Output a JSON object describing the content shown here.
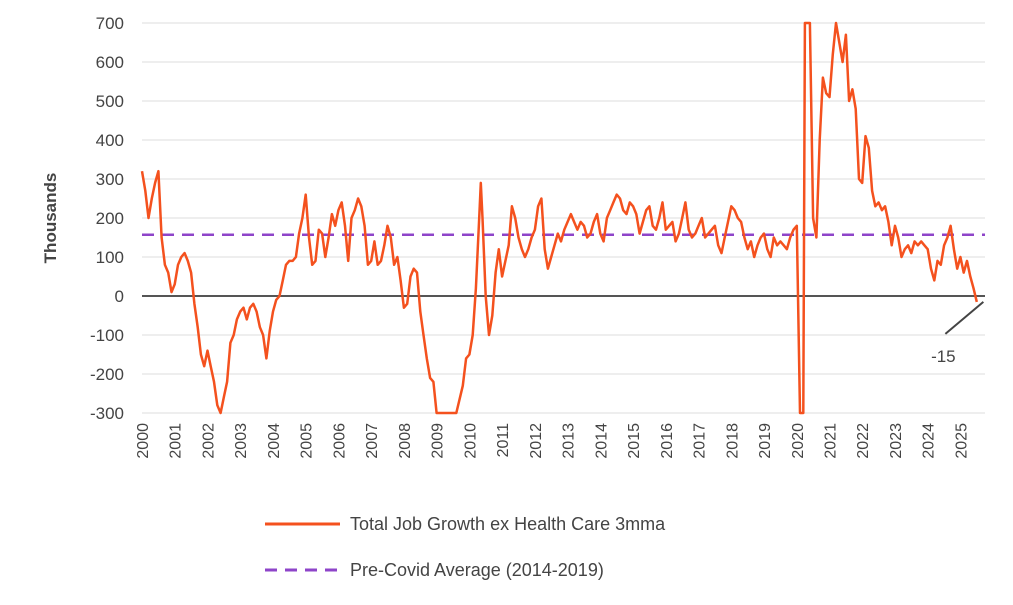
{
  "chart_data": {
    "type": "line",
    "title": "",
    "xlabel": "",
    "ylabel": "Thousands",
    "ylim": [
      -300,
      700
    ],
    "xlim": [
      2000,
      2025.75
    ],
    "yticks": [
      -300,
      -200,
      -100,
      0,
      100,
      200,
      300,
      400,
      500,
      600,
      700
    ],
    "xticks": [
      "2000",
      "2001",
      "2002",
      "2003",
      "2004",
      "2005",
      "2006",
      "2007",
      "2008",
      "2009",
      "2010",
      "2011",
      "2012",
      "2013",
      "2014",
      "2015",
      "2016",
      "2017",
      "2018",
      "2019",
      "2020",
      "2021",
      "2022",
      "2023",
      "2024",
      "2025"
    ],
    "legend": [
      "Total Job Growth ex Health Care 3mma",
      "Pre-Covid Average (2014-2019)"
    ],
    "legend_position": "bottom",
    "annotation": {
      "text": "-15",
      "x": 2025.7,
      "y": -15
    },
    "series": [
      {
        "name": "Total Job Growth ex Health Care 3mma",
        "color": "#f4511e",
        "points": [
          [
            2000.0,
            320
          ],
          [
            2000.1,
            270
          ],
          [
            2000.2,
            200
          ],
          [
            2000.3,
            250
          ],
          [
            2000.4,
            290
          ],
          [
            2000.5,
            320
          ],
          [
            2000.6,
            150
          ],
          [
            2000.7,
            80
          ],
          [
            2000.8,
            60
          ],
          [
            2000.9,
            10
          ],
          [
            2001.0,
            30
          ],
          [
            2001.1,
            80
          ],
          [
            2001.2,
            100
          ],
          [
            2001.3,
            110
          ],
          [
            2001.4,
            90
          ],
          [
            2001.5,
            60
          ],
          [
            2001.6,
            -20
          ],
          [
            2001.7,
            -80
          ],
          [
            2001.8,
            -150
          ],
          [
            2001.9,
            -180
          ],
          [
            2002.0,
            -140
          ],
          [
            2002.1,
            -180
          ],
          [
            2002.2,
            -220
          ],
          [
            2002.3,
            -280
          ],
          [
            2002.4,
            -300
          ],
          [
            2002.5,
            -260
          ],
          [
            2002.6,
            -220
          ],
          [
            2002.7,
            -120
          ],
          [
            2002.8,
            -100
          ],
          [
            2002.9,
            -60
          ],
          [
            2003.0,
            -40
          ],
          [
            2003.1,
            -30
          ],
          [
            2003.2,
            -60
          ],
          [
            2003.3,
            -30
          ],
          [
            2003.4,
            -20
          ],
          [
            2003.5,
            -40
          ],
          [
            2003.6,
            -80
          ],
          [
            2003.7,
            -100
          ],
          [
            2003.8,
            -160
          ],
          [
            2003.9,
            -90
          ],
          [
            2004.0,
            -40
          ],
          [
            2004.1,
            -10
          ],
          [
            2004.2,
            0
          ],
          [
            2004.3,
            40
          ],
          [
            2004.4,
            80
          ],
          [
            2004.5,
            90
          ],
          [
            2004.6,
            90
          ],
          [
            2004.7,
            100
          ],
          [
            2004.8,
            160
          ],
          [
            2004.9,
            200
          ],
          [
            2005.0,
            260
          ],
          [
            2005.1,
            150
          ],
          [
            2005.2,
            80
          ],
          [
            2005.3,
            90
          ],
          [
            2005.4,
            170
          ],
          [
            2005.5,
            160
          ],
          [
            2005.6,
            100
          ],
          [
            2005.7,
            150
          ],
          [
            2005.8,
            210
          ],
          [
            2005.9,
            180
          ],
          [
            2006.0,
            220
          ],
          [
            2006.1,
            240
          ],
          [
            2006.2,
            180
          ],
          [
            2006.3,
            90
          ],
          [
            2006.4,
            200
          ],
          [
            2006.5,
            220
          ],
          [
            2006.6,
            250
          ],
          [
            2006.7,
            230
          ],
          [
            2006.8,
            180
          ],
          [
            2006.9,
            80
          ],
          [
            2007.0,
            90
          ],
          [
            2007.1,
            140
          ],
          [
            2007.2,
            80
          ],
          [
            2007.3,
            90
          ],
          [
            2007.4,
            130
          ],
          [
            2007.5,
            180
          ],
          [
            2007.6,
            150
          ],
          [
            2007.7,
            80
          ],
          [
            2007.8,
            100
          ],
          [
            2007.9,
            40
          ],
          [
            2008.0,
            -30
          ],
          [
            2008.1,
            -20
          ],
          [
            2008.2,
            50
          ],
          [
            2008.3,
            70
          ],
          [
            2008.4,
            60
          ],
          [
            2008.5,
            -40
          ],
          [
            2008.6,
            -100
          ],
          [
            2008.7,
            -160
          ],
          [
            2008.8,
            -210
          ],
          [
            2008.9,
            -220
          ],
          [
            2009.0,
            -300
          ],
          [
            2009.3,
            -300
          ],
          [
            2009.6,
            -300
          ],
          [
            2009.8,
            -230
          ],
          [
            2009.9,
            -160
          ],
          [
            2010.0,
            -150
          ],
          [
            2010.1,
            -100
          ],
          [
            2010.2,
            20
          ],
          [
            2010.3,
            200
          ],
          [
            2010.35,
            290
          ],
          [
            2010.4,
            200
          ],
          [
            2010.5,
            0
          ],
          [
            2010.6,
            -100
          ],
          [
            2010.7,
            -50
          ],
          [
            2010.8,
            60
          ],
          [
            2010.9,
            120
          ],
          [
            2011.0,
            50
          ],
          [
            2011.1,
            90
          ],
          [
            2011.2,
            130
          ],
          [
            2011.3,
            230
          ],
          [
            2011.4,
            200
          ],
          [
            2011.5,
            150
          ],
          [
            2011.6,
            120
          ],
          [
            2011.7,
            100
          ],
          [
            2011.8,
            120
          ],
          [
            2011.9,
            150
          ],
          [
            2012.0,
            170
          ],
          [
            2012.1,
            230
          ],
          [
            2012.2,
            250
          ],
          [
            2012.3,
            120
          ],
          [
            2012.4,
            70
          ],
          [
            2012.5,
            100
          ],
          [
            2012.6,
            130
          ],
          [
            2012.7,
            160
          ],
          [
            2012.8,
            140
          ],
          [
            2012.9,
            170
          ],
          [
            2013.0,
            190
          ],
          [
            2013.1,
            210
          ],
          [
            2013.2,
            190
          ],
          [
            2013.3,
            170
          ],
          [
            2013.4,
            190
          ],
          [
            2013.5,
            180
          ],
          [
            2013.6,
            150
          ],
          [
            2013.7,
            160
          ],
          [
            2013.8,
            190
          ],
          [
            2013.9,
            210
          ],
          [
            2014.0,
            160
          ],
          [
            2014.1,
            140
          ],
          [
            2014.2,
            200
          ],
          [
            2014.3,
            220
          ],
          [
            2014.4,
            240
          ],
          [
            2014.5,
            260
          ],
          [
            2014.6,
            250
          ],
          [
            2014.7,
            220
          ],
          [
            2014.8,
            210
          ],
          [
            2014.9,
            240
          ],
          [
            2015.0,
            230
          ],
          [
            2015.1,
            210
          ],
          [
            2015.2,
            160
          ],
          [
            2015.3,
            190
          ],
          [
            2015.4,
            220
          ],
          [
            2015.5,
            230
          ],
          [
            2015.6,
            180
          ],
          [
            2015.7,
            170
          ],
          [
            2015.8,
            200
          ],
          [
            2015.9,
            240
          ],
          [
            2016.0,
            170
          ],
          [
            2016.1,
            180
          ],
          [
            2016.2,
            190
          ],
          [
            2016.3,
            140
          ],
          [
            2016.4,
            160
          ],
          [
            2016.5,
            200
          ],
          [
            2016.6,
            240
          ],
          [
            2016.7,
            170
          ],
          [
            2016.8,
            150
          ],
          [
            2016.9,
            160
          ],
          [
            2017.0,
            180
          ],
          [
            2017.1,
            200
          ],
          [
            2017.2,
            150
          ],
          [
            2017.3,
            160
          ],
          [
            2017.4,
            170
          ],
          [
            2017.5,
            180
          ],
          [
            2017.6,
            130
          ],
          [
            2017.7,
            110
          ],
          [
            2017.8,
            150
          ],
          [
            2017.9,
            190
          ],
          [
            2018.0,
            230
          ],
          [
            2018.1,
            220
          ],
          [
            2018.2,
            200
          ],
          [
            2018.3,
            190
          ],
          [
            2018.4,
            150
          ],
          [
            2018.5,
            120
          ],
          [
            2018.6,
            140
          ],
          [
            2018.7,
            100
          ],
          [
            2018.8,
            130
          ],
          [
            2018.9,
            150
          ],
          [
            2019.0,
            160
          ],
          [
            2019.1,
            120
          ],
          [
            2019.2,
            100
          ],
          [
            2019.3,
            150
          ],
          [
            2019.4,
            130
          ],
          [
            2019.5,
            140
          ],
          [
            2019.6,
            130
          ],
          [
            2019.7,
            120
          ],
          [
            2019.8,
            150
          ],
          [
            2019.9,
            170
          ],
          [
            2020.0,
            180
          ],
          [
            2020.1,
            -300
          ],
          [
            2020.2,
            -300
          ],
          [
            2020.25,
            700
          ],
          [
            2020.3,
            700
          ],
          [
            2020.4,
            700
          ],
          [
            2020.5,
            200
          ],
          [
            2020.6,
            150
          ],
          [
            2020.7,
            400
          ],
          [
            2020.8,
            560
          ],
          [
            2020.9,
            520
          ],
          [
            2021.0,
            510
          ],
          [
            2021.1,
            620
          ],
          [
            2021.2,
            700
          ],
          [
            2021.3,
            650
          ],
          [
            2021.4,
            600
          ],
          [
            2021.5,
            670
          ],
          [
            2021.6,
            500
          ],
          [
            2021.7,
            530
          ],
          [
            2021.8,
            480
          ],
          [
            2021.9,
            300
          ],
          [
            2022.0,
            290
          ],
          [
            2022.1,
            410
          ],
          [
            2022.2,
            380
          ],
          [
            2022.3,
            270
          ],
          [
            2022.4,
            230
          ],
          [
            2022.5,
            240
          ],
          [
            2022.6,
            220
          ],
          [
            2022.7,
            230
          ],
          [
            2022.8,
            190
          ],
          [
            2022.9,
            130
          ],
          [
            2023.0,
            180
          ],
          [
            2023.1,
            150
          ],
          [
            2023.2,
            100
          ],
          [
            2023.3,
            120
          ],
          [
            2023.4,
            130
          ],
          [
            2023.5,
            110
          ],
          [
            2023.6,
            140
          ],
          [
            2023.7,
            130
          ],
          [
            2023.8,
            140
          ],
          [
            2023.9,
            130
          ],
          [
            2024.0,
            120
          ],
          [
            2024.1,
            70
          ],
          [
            2024.2,
            40
          ],
          [
            2024.3,
            90
          ],
          [
            2024.4,
            80
          ],
          [
            2024.5,
            130
          ],
          [
            2024.6,
            150
          ],
          [
            2024.7,
            180
          ],
          [
            2024.8,
            120
          ],
          [
            2024.9,
            70
          ],
          [
            2025.0,
            100
          ],
          [
            2025.1,
            60
          ],
          [
            2025.2,
            90
          ],
          [
            2025.3,
            50
          ],
          [
            2025.4,
            20
          ],
          [
            2025.5,
            -15
          ]
        ]
      },
      {
        "name": "Pre-Covid Average (2014-2019)",
        "color": "#8e44c9",
        "style": "dashed",
        "value": 157
      }
    ]
  }
}
